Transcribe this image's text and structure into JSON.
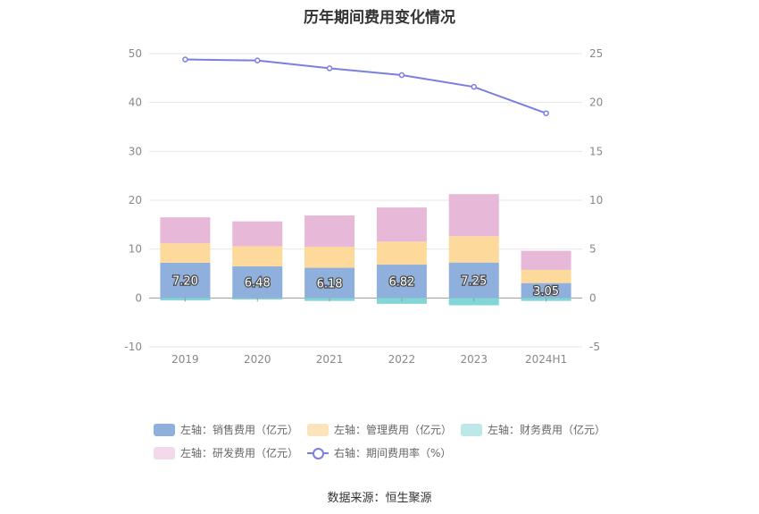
{
  "chart_data": {
    "type": "bar",
    "title": "历年期间费用变化情况",
    "categories": [
      "2019",
      "2020",
      "2021",
      "2022",
      "2023",
      "2024H1"
    ],
    "left_axis": {
      "ylim": [
        -10,
        50
      ],
      "ticks": [
        "50",
        "40",
        "30",
        "20",
        "10",
        "0",
        "-10"
      ]
    },
    "right_axis": {
      "ylim": [
        -5,
        25
      ],
      "ticks": [
        "25",
        "20",
        "15",
        "10",
        "5",
        "0",
        "-5"
      ]
    },
    "series": [
      {
        "name": "左轴：销售费用（亿元）",
        "type": "bar",
        "axis": "left",
        "color": "#8fb0dc",
        "values": [
          7.2,
          6.48,
          6.18,
          6.82,
          7.25,
          3.05
        ],
        "labels": [
          "7.20",
          "6.48",
          "6.18",
          "6.82",
          "7.25",
          "3.05"
        ]
      },
      {
        "name": "左轴：管理费用（亿元）",
        "type": "bar",
        "axis": "left",
        "color": "#fdd99b",
        "values": [
          4.0,
          4.1,
          4.3,
          4.7,
          5.4,
          2.7
        ]
      },
      {
        "name": "左轴：财务费用（亿元）",
        "type": "bar",
        "axis": "left",
        "color": "#82d6d6",
        "values": [
          -0.5,
          -0.3,
          -0.6,
          -1.2,
          -1.5,
          -0.6
        ]
      },
      {
        "name": "左轴：研发费用（亿元）",
        "type": "bar",
        "axis": "left",
        "color": "#e8b8d8",
        "values": [
          5.3,
          5.1,
          6.4,
          7.0,
          8.6,
          3.9
        ]
      },
      {
        "name": "右轴：期间费用率（%）",
        "type": "line",
        "axis": "right",
        "color": "#7a7fe0",
        "values": [
          24.4,
          24.3,
          23.5,
          22.8,
          21.6,
          18.9
        ]
      }
    ],
    "grid": true,
    "legend_position": "bottom"
  },
  "source_text": "数据来源：恒生聚源"
}
